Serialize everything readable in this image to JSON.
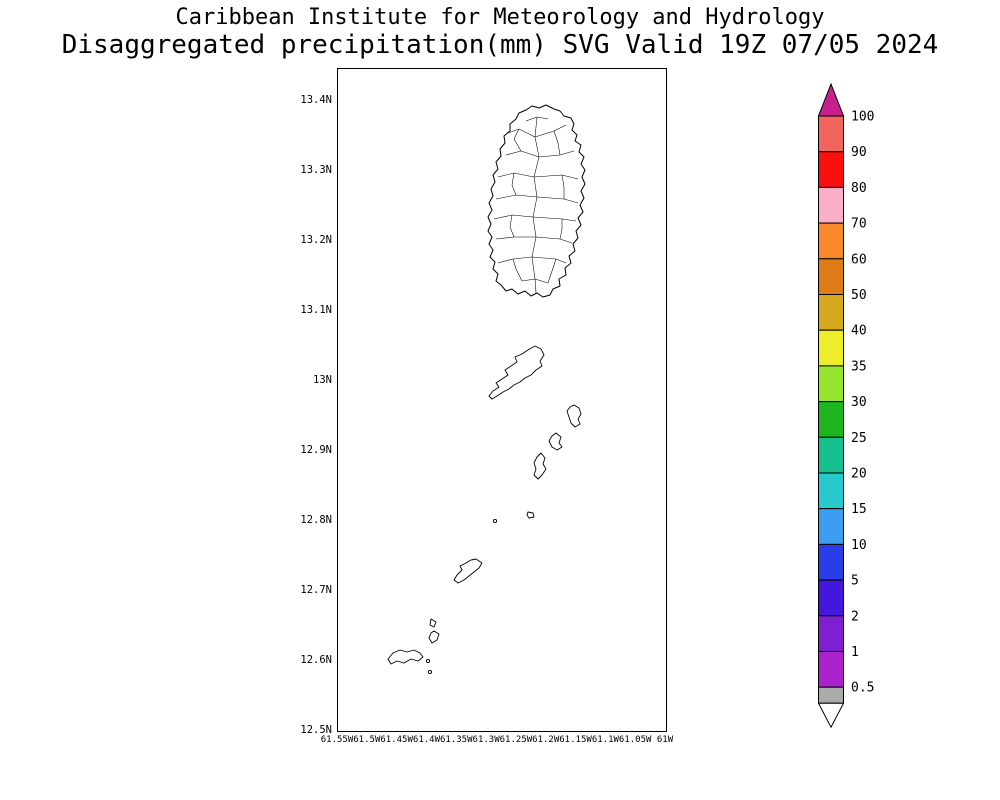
{
  "title": {
    "line1": "Caribbean Institute for Meteorology and Hydrology",
    "line2": "Disaggregated precipitation(mm) SVG Valid 19Z 07/05 2024"
  },
  "map": {
    "lat_labels": [
      "13.4N",
      "13.3N",
      "13.2N",
      "13.1N",
      "13N",
      "12.9N",
      "12.8N",
      "12.7N",
      "12.6N",
      "12.5N"
    ],
    "lon_labels": [
      "61.55W",
      "61.5W",
      "61.45W",
      "61.4W",
      "61.35W",
      "61.3W",
      "61.25W",
      "61.2W",
      "61.15W",
      "61.1W",
      "61.05W",
      "61W"
    ]
  },
  "colorbar": {
    "labels": [
      "100",
      "90",
      "80",
      "70",
      "60",
      "50",
      "40",
      "35",
      "30",
      "25",
      "20",
      "15",
      "10",
      "5",
      "2",
      "1",
      "0.5"
    ],
    "top_arrow_color": "#C5208E",
    "bottom_arrow_color": "#FFFFFF",
    "segment_colors": [
      "#F2655E",
      "#FB0F0F",
      "#FBAEC8",
      "#F8882B",
      "#DE7D17",
      "#D7A71F",
      "#EDED2A",
      "#97E42F",
      "#1EB41E",
      "#17BE8E",
      "#29C8CD",
      "#3E9DF1",
      "#2A3BE8",
      "#4317DE",
      "#7F1FD2",
      "#A922CC",
      "#ABABAB"
    ]
  }
}
